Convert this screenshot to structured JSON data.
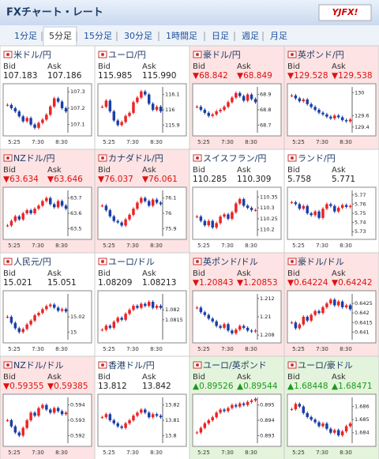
{
  "header": {
    "title": "FXチャート・レート",
    "logo": "YJFX!"
  },
  "tabs": {
    "items": [
      "1分足",
      "5分足",
      "15分足",
      "30分足",
      "1時間足",
      "日足",
      "週足",
      "月足"
    ],
    "selected": 1
  },
  "labels": {
    "bid": "Bid",
    "ask": "Ask"
  },
  "time_labels": [
    "5:25",
    "7:30",
    "8:30"
  ],
  "panels": [
    {
      "name": "米ドル/円",
      "bid": "107.183",
      "ask": "107.186",
      "trend": null,
      "chart": {
        "type": "candlestick",
        "closes": [
          107.22,
          107.2,
          107.18,
          107.15,
          107.12,
          107.14,
          107.1,
          107.08,
          107.11,
          107.13,
          107.16,
          107.21,
          107.26,
          107.24,
          107.2,
          107.18
        ],
        "ylim": [
          107.05,
          107.33
        ],
        "yticks": [
          107.3,
          107.2,
          107.1
        ]
      }
    },
    {
      "name": "ユーロ/円",
      "bid": "115.985",
      "ask": "115.990",
      "trend": null,
      "chart": {
        "type": "candlestick",
        "closes": [
          116.02,
          116.06,
          115.99,
          115.93,
          115.9,
          115.92,
          115.96,
          115.98,
          116.05,
          116.08,
          116.12,
          116.1,
          116.04,
          116.0,
          116.02,
          115.99
        ],
        "ylim": [
          115.85,
          116.15
        ],
        "yticks": [
          116.1,
          116,
          115.9
        ]
      }
    },
    {
      "name": "豪ドル/円",
      "bid": "▼68.842",
      "ask": "▼68.849",
      "trend": "down",
      "chart": {
        "type": "candlestick",
        "closes": [
          68.82,
          68.8,
          68.78,
          68.76,
          68.77,
          68.79,
          68.8,
          68.82,
          68.85,
          68.88,
          68.91,
          68.89,
          68.86,
          68.9,
          68.87,
          68.85
        ],
        "ylim": [
          68.65,
          68.95
        ],
        "yticks": [
          68.9,
          68.8,
          68.7
        ]
      }
    },
    {
      "name": "英ポンド/円",
      "bid": "▼129.528",
      "ask": "▼129.538",
      "trend": "down",
      "chart": {
        "type": "candlestick",
        "closes": [
          129.95,
          129.9,
          129.85,
          129.88,
          129.8,
          129.75,
          129.7,
          129.65,
          129.62,
          129.58,
          129.55,
          129.6,
          129.57,
          129.52,
          129.5,
          129.53
        ],
        "ylim": [
          129.3,
          130.1
        ],
        "yticks": [
          130,
          129.6,
          129.4
        ]
      }
    },
    {
      "name": "NZドル/円",
      "bid": "▼63.634",
      "ask": "▼63.646",
      "trend": "down",
      "chart": {
        "type": "candlestick",
        "closes": [
          63.52,
          63.55,
          63.58,
          63.56,
          63.6,
          63.62,
          63.6,
          63.63,
          63.65,
          63.68,
          63.7,
          63.66,
          63.64,
          63.68,
          63.65,
          63.63
        ],
        "ylim": [
          63.45,
          63.75
        ],
        "yticks": [
          63.7,
          63.6,
          63.5
        ]
      }
    },
    {
      "name": "カナダドル/円",
      "bid": "▼76.037",
      "ask": "▼76.061",
      "trend": "down",
      "chart": {
        "type": "candlestick",
        "closes": [
          76.05,
          76.02,
          75.98,
          75.95,
          75.94,
          75.92,
          75.96,
          75.99,
          76.03,
          76.07,
          76.1,
          76.08,
          76.05,
          76.09,
          76.07,
          76.06
        ],
        "ylim": [
          75.85,
          76.15
        ],
        "yticks": [
          76.1,
          76,
          75.9
        ]
      }
    },
    {
      "name": "スイスフラン/円",
      "bid": "110.285",
      "ask": "110.309",
      "trend": null,
      "chart": {
        "type": "candlestick",
        "closes": [
          110.26,
          110.24,
          110.22,
          110.24,
          110.21,
          110.23,
          110.26,
          110.27,
          110.25,
          110.28,
          110.32,
          110.34,
          110.31,
          110.3,
          110.29,
          110.29
        ],
        "ylim": [
          110.17,
          110.38
        ],
        "yticks": [
          110.35,
          110.3,
          110.25,
          110.2
        ]
      }
    },
    {
      "name": "ランド/円",
      "bid": "5.758",
      "ask": "5.771",
      "trend": null,
      "chart": {
        "type": "candlestick",
        "closes": [
          5.762,
          5.76,
          5.755,
          5.758,
          5.75,
          5.748,
          5.752,
          5.745,
          5.755,
          5.76,
          5.758,
          5.752,
          5.756,
          5.759,
          5.757,
          5.758
        ],
        "ylim": [
          5.725,
          5.775
        ],
        "yticks": [
          5.77,
          5.76,
          5.75,
          5.74,
          5.73
        ]
      }
    },
    {
      "name": "人民元/円",
      "bid": "15.021",
      "ask": "15.051",
      "trend": null,
      "chart": {
        "type": "candlestick",
        "closes": [
          15.02,
          15.012,
          15.005,
          15.0,
          15.004,
          15.01,
          15.015,
          15.022,
          15.025,
          15.03,
          15.034,
          15.036,
          15.032,
          15.028,
          15.03,
          15.027
        ],
        "ylim": [
          14.99,
          15.05
        ],
        "yticks": [
          15.02,
          15
        ]
      }
    },
    {
      "name": "ユーロ/ドル",
      "bid": "1.08209",
      "ask": "1.08213",
      "trend": null,
      "chart": {
        "type": "candlestick",
        "closes": [
          1.081,
          1.0812,
          1.0811,
          1.0814,
          1.0816,
          1.0815,
          1.0818,
          1.082,
          1.0822,
          1.0821,
          1.0823,
          1.0822,
          1.0824,
          1.0821,
          1.0822,
          1.0821
        ],
        "ylim": [
          1.0805,
          1.0828
        ],
        "yticks": [
          1.082,
          1.0815
        ]
      }
    },
    {
      "name": "英ポンド/ドル",
      "bid": "▼1.20843",
      "ask": "▼1.20853",
      "trend": "down",
      "chart": {
        "type": "candlestick",
        "closes": [
          1.211,
          1.2105,
          1.2102,
          1.2098,
          1.2095,
          1.209,
          1.2088,
          1.2092,
          1.2085,
          1.2082,
          1.2086,
          1.209,
          1.2088,
          1.2085,
          1.2084,
          1.2085
        ],
        "ylim": [
          1.2075,
          1.2125
        ],
        "yticks": [
          1.212,
          1.21,
          1.208
        ]
      }
    },
    {
      "name": "豪ドル/ドル",
      "bid": "▼0.64224",
      "ask": "▼0.64242",
      "trend": "down",
      "chart": {
        "type": "candlestick",
        "closes": [
          0.6415,
          0.6412,
          0.6414,
          0.6418,
          0.6416,
          0.6419,
          0.6421,
          0.642,
          0.6423,
          0.6425,
          0.6427,
          0.6424,
          0.6426,
          0.6423,
          0.6424,
          0.6422
        ],
        "ylim": [
          0.6406,
          0.643
        ],
        "yticks": [
          0.6425,
          0.642,
          0.6415,
          0.641
        ]
      }
    },
    {
      "name": "NZドル/ドル",
      "bid": "▼0.59355",
      "ask": "▼0.59385",
      "trend": "down",
      "chart": {
        "type": "candlestick",
        "closes": [
          0.593,
          0.5926,
          0.5922,
          0.592,
          0.5925,
          0.593,
          0.5935,
          0.5933,
          0.5938,
          0.594,
          0.5937,
          0.5935,
          0.5938,
          0.5936,
          0.5934,
          0.5935
        ],
        "ylim": [
          0.5915,
          0.5945
        ],
        "yticks": [
          0.594,
          0.593,
          0.592
        ]
      }
    },
    {
      "name": "香港ドル/円",
      "bid": "13.812",
      "ask": "13.842",
      "trend": null,
      "chart": {
        "type": "candlestick",
        "closes": [
          13.812,
          13.814,
          13.81,
          13.808,
          13.806,
          13.805,
          13.808,
          13.81,
          13.813,
          13.815,
          13.817,
          13.815,
          13.812,
          13.814,
          13.813,
          13.812
        ],
        "ylim": [
          13.795,
          13.825
        ],
        "yticks": [
          13.82,
          13.81,
          13.8
        ]
      }
    },
    {
      "name": "ユーロ/英ポンド",
      "bid": "▲0.89526",
      "ask": "▲0.89544",
      "trend": "up",
      "chart": {
        "type": "candlestick",
        "closes": [
          0.8932,
          0.8935,
          0.8938,
          0.894,
          0.8942,
          0.8945,
          0.8947,
          0.8946,
          0.8948,
          0.895,
          0.8949,
          0.8951,
          0.895,
          0.8952,
          0.8953,
          0.8954
        ],
        "ylim": [
          0.8925,
          0.8955
        ],
        "yticks": [
          0.895,
          0.894,
          0.893
        ]
      }
    },
    {
      "name": "ユーロ/豪ドル",
      "bid": "▲1.68448",
      "ask": "▲1.68471",
      "trend": "up",
      "chart": {
        "type": "candlestick",
        "closes": [
          1.6858,
          1.6862,
          1.686,
          1.6855,
          1.6852,
          1.685,
          1.6848,
          1.6845,
          1.6847,
          1.6843,
          1.684,
          1.6842,
          1.6838,
          1.6841,
          1.6845,
          1.6847
        ],
        "ylim": [
          1.6832,
          1.6867
        ],
        "yticks": [
          1.686,
          1.685,
          1.684
        ]
      }
    }
  ]
}
